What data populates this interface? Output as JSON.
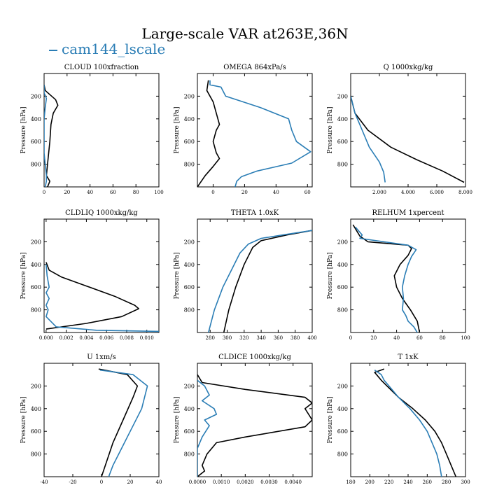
{
  "title": "Large-scale VAR at263E,36N",
  "legend": {
    "label": "cam144_lscale",
    "color": "#2a7db5"
  },
  "colors": {
    "control": "#000000",
    "case": "#2a7db5"
  },
  "chart_data": [
    {
      "type": "line",
      "title": "CLOUD  100xfraction",
      "ylabel": "Pressure [hPa]",
      "xlim": [
        0,
        100
      ],
      "ylim": [
        1000,
        0
      ],
      "xticks": [
        "0",
        "20",
        "40",
        "60",
        "80",
        "100"
      ],
      "yticks": [
        200,
        400,
        600,
        800
      ],
      "series": [
        {
          "values": [
            [
              0,
              100
            ],
            [
              1,
              150
            ],
            [
              10,
              230
            ],
            [
              12,
              280
            ],
            [
              8,
              350
            ],
            [
              6,
              450
            ],
            [
              5,
              600
            ],
            [
              3,
              800
            ],
            [
              2,
              900
            ],
            [
              5,
              950
            ],
            [
              3,
              1000
            ]
          ]
        },
        {
          "values": [
            [
              0,
              100
            ],
            [
              0,
              170
            ],
            [
              2,
              220
            ],
            [
              1,
              300
            ],
            [
              0,
              400
            ],
            [
              0,
              700
            ],
            [
              1,
              800
            ],
            [
              2,
              900
            ],
            [
              2,
              950
            ],
            [
              1,
              1000
            ]
          ]
        }
      ]
    },
    {
      "type": "line",
      "title": "OMEGA  864xPa/s",
      "ylabel": "Pressure [hPa]",
      "xlim": [
        -10,
        63
      ],
      "ylim": [
        1000,
        0
      ],
      "xticks": [
        "0",
        "20",
        "40",
        "60"
      ],
      "yticks": [
        200,
        400,
        600,
        800
      ],
      "series": [
        {
          "values": [
            [
              -3,
              60
            ],
            [
              -4,
              150
            ],
            [
              0,
              250
            ],
            [
              2,
              350
            ],
            [
              4,
              450
            ],
            [
              2,
              500
            ],
            [
              0,
              600
            ],
            [
              2,
              700
            ],
            [
              4,
              750
            ],
            [
              0,
              820
            ],
            [
              -5,
              900
            ],
            [
              -10,
              1000
            ]
          ]
        },
        {
          "values": [
            [
              -2,
              60
            ],
            [
              -2,
              100
            ],
            [
              5,
              120
            ],
            [
              8,
              200
            ],
            [
              30,
              300
            ],
            [
              48,
              400
            ],
            [
              50,
              500
            ],
            [
              53,
              600
            ],
            [
              62,
              690
            ],
            [
              50,
              790
            ],
            [
              28,
              860
            ],
            [
              18,
              910
            ],
            [
              15,
              950
            ],
            [
              14,
              1000
            ]
          ]
        }
      ]
    },
    {
      "type": "line",
      "title": "Q  1000xkg/kg",
      "ylabel": "Pressure [hPa]",
      "xlim": [
        0,
        8000
      ],
      "ylim": [
        1000,
        0
      ],
      "xticks": [
        "2.000",
        "4.000",
        "6.000",
        "8.000"
      ],
      "xtick_values": [
        2000,
        4000,
        6000,
        8000
      ],
      "yticks": [
        200,
        400,
        600,
        800
      ],
      "series": [
        {
          "values": [
            [
              0,
              200
            ],
            [
              300,
              350
            ],
            [
              1200,
              500
            ],
            [
              2800,
              650
            ],
            [
              4600,
              760
            ],
            [
              6400,
              860
            ],
            [
              7900,
              960
            ]
          ]
        },
        {
          "values": [
            [
              0,
              200
            ],
            [
              300,
              350
            ],
            [
              800,
              500
            ],
            [
              1300,
              650
            ],
            [
              2000,
              780
            ],
            [
              2300,
              870
            ],
            [
              2400,
              960
            ]
          ]
        }
      ]
    },
    {
      "type": "line",
      "title": "CLDLIQ  1000xkg/kg",
      "ylabel": "Pressure [hPa]",
      "xlim": [
        -0.0002,
        0.0112
      ],
      "ylim": [
        1000,
        0
      ],
      "xticks": [
        "0.000",
        "0.002",
        "0.004",
        "0.006",
        "0.008",
        "0.010"
      ],
      "xtick_values": [
        0,
        0.002,
        0.004,
        0.006,
        0.008,
        0.01
      ],
      "yticks": [
        200,
        400,
        600,
        800
      ],
      "series": [
        {
          "values": [
            [
              0,
              380
            ],
            [
              0.0003,
              450
            ],
            [
              0.0015,
              510
            ],
            [
              0.004,
              590
            ],
            [
              0.0068,
              680
            ],
            [
              0.0088,
              760
            ],
            [
              0.0092,
              790
            ],
            [
              0.0075,
              860
            ],
            [
              0.004,
              920
            ],
            [
              0,
              970
            ]
          ]
        },
        {
          "values": [
            [
              0,
              400
            ],
            [
              0.0001,
              500
            ],
            [
              0.0003,
              600
            ],
            [
              0,
              650
            ],
            [
              0.0003,
              700
            ],
            [
              0,
              760
            ],
            [
              0.0002,
              800
            ],
            [
              0,
              860
            ],
            [
              0.001,
              950
            ],
            [
              0.005,
              980
            ],
            [
              0.0112,
              990
            ]
          ]
        }
      ]
    },
    {
      "type": "line",
      "title": "THETA  1.0xK",
      "ylabel": "Pressure [hPa]",
      "xlim": [
        265,
        400
      ],
      "ylim": [
        1000,
        0
      ],
      "xticks": [
        "280",
        "300",
        "320",
        "340",
        "360",
        "380",
        "400"
      ],
      "xtick_values": [
        280,
        300,
        320,
        340,
        360,
        380,
        400
      ],
      "yticks": [
        200,
        400,
        600,
        800
      ],
      "series": [
        {
          "values": [
            [
              400,
              100
            ],
            [
              370,
              140
            ],
            [
              340,
              190
            ],
            [
              330,
              250
            ],
            [
              320,
              400
            ],
            [
              310,
              600
            ],
            [
              302,
              800
            ],
            [
              296,
              1000
            ]
          ]
        },
        {
          "values": [
            [
              400,
              100
            ],
            [
              365,
              140
            ],
            [
              340,
              170
            ],
            [
              325,
              220
            ],
            [
              315,
              300
            ],
            [
              305,
              450
            ],
            [
              295,
              600
            ],
            [
              285,
              800
            ],
            [
              278,
              1000
            ]
          ]
        }
      ]
    },
    {
      "type": "line",
      "title": "RELHUM  1xpercent",
      "ylabel": "Pressure [hPa]",
      "xlim": [
        0,
        100
      ],
      "ylim": [
        1000,
        0
      ],
      "xticks": [
        "0",
        "20",
        "40",
        "60",
        "80",
        "100"
      ],
      "yticks": [
        200,
        400,
        600,
        800
      ],
      "series": [
        {
          "values": [
            [
              2,
              50
            ],
            [
              8,
              150
            ],
            [
              15,
              200
            ],
            [
              50,
              230
            ],
            [
              53,
              260
            ],
            [
              50,
              320
            ],
            [
              43,
              400
            ],
            [
              38,
              500
            ],
            [
              40,
              600
            ],
            [
              45,
              700
            ],
            [
              52,
              800
            ],
            [
              58,
              900
            ],
            [
              60,
              1000
            ]
          ]
        },
        {
          "values": [
            [
              4,
              70
            ],
            [
              10,
              140
            ],
            [
              8,
              170
            ],
            [
              50,
              230
            ],
            [
              57,
              270
            ],
            [
              53,
              330
            ],
            [
              50,
              400
            ],
            [
              47,
              500
            ],
            [
              45,
              600
            ],
            [
              46,
              700
            ],
            [
              45,
              800
            ],
            [
              48,
              850
            ],
            [
              50,
              900
            ],
            [
              55,
              950
            ],
            [
              58,
              1000
            ]
          ]
        }
      ]
    },
    {
      "type": "line",
      "title": "U  1xm/s",
      "ylabel": "Pressure [hPa]",
      "xlim": [
        -40,
        40
      ],
      "ylim": [
        1000,
        0
      ],
      "xticks": [
        "-40",
        "-20",
        "0",
        "20",
        "40"
      ],
      "xtick_values": [
        -40,
        -20,
        0,
        20,
        40
      ],
      "yticks": [
        200,
        400,
        600,
        800
      ],
      "series": [
        {
          "values": [
            [
              -2,
              50
            ],
            [
              2,
              60
            ],
            [
              18,
              100
            ],
            [
              25,
              200
            ],
            [
              22,
              300
            ],
            [
              15,
              500
            ],
            [
              8,
              700
            ],
            [
              4,
              850
            ],
            [
              0,
              1000
            ]
          ]
        },
        {
          "values": [
            [
              -1,
              60
            ],
            [
              5,
              70
            ],
            [
              22,
              100
            ],
            [
              32,
              200
            ],
            [
              28,
              400
            ],
            [
              20,
              600
            ],
            [
              12,
              800
            ],
            [
              8,
              900
            ],
            [
              5,
              1000
            ]
          ]
        }
      ]
    },
    {
      "type": "line",
      "title": "CLDICE  1000xkg/kg",
      "ylabel": "Pressure [hPa]",
      "xlim": [
        0,
        0.0048
      ],
      "ylim": [
        1000,
        0
      ],
      "xticks": [
        "0.0000",
        "0.0010",
        "0.0020",
        "0.0030",
        "0.0040"
      ],
      "xtick_values": [
        0,
        0.001,
        0.002,
        0.003,
        0.004
      ],
      "yticks": [
        200,
        400,
        600,
        800
      ],
      "series": [
        {
          "values": [
            [
              0,
              100
            ],
            [
              0.0002,
              170
            ],
            [
              0.002,
              230
            ],
            [
              0.0045,
              300
            ],
            [
              0.0048,
              350
            ],
            [
              0.0045,
              400
            ],
            [
              0.0048,
              500
            ],
            [
              0.0045,
              560
            ],
            [
              0.002,
              650
            ],
            [
              0.0008,
              700
            ],
            [
              0.0004,
              800
            ],
            [
              0.0002,
              900
            ],
            [
              0.0003,
              950
            ],
            [
              0,
              1000
            ]
          ]
        },
        {
          "values": [
            [
              0,
              150
            ],
            [
              0.0003,
              200
            ],
            [
              0.0005,
              280
            ],
            [
              0.0002,
              330
            ],
            [
              0.0007,
              400
            ],
            [
              0.0008,
              450
            ],
            [
              0.0003,
              500
            ],
            [
              0.0005,
              550
            ],
            [
              0.0002,
              650
            ],
            [
              0,
              750
            ],
            [
              0,
              1000
            ]
          ]
        }
      ]
    },
    {
      "type": "line",
      "title": "T  1xK",
      "ylabel": "Pressure [hPa]",
      "xlim": [
        180,
        300
      ],
      "ylim": [
        1000,
        0
      ],
      "xticks": [
        "180",
        "200",
        "220",
        "240",
        "260",
        "280",
        "300"
      ],
      "xtick_values": [
        180,
        200,
        220,
        240,
        260,
        280,
        300
      ],
      "yticks": [
        200,
        400,
        600,
        800
      ],
      "series": [
        {
          "values": [
            [
              215,
              50
            ],
            [
              205,
              80
            ],
            [
              208,
              110
            ],
            [
              212,
              150
            ],
            [
              218,
              200
            ],
            [
              230,
              300
            ],
            [
              245,
              400
            ],
            [
              258,
              500
            ],
            [
              268,
              600
            ],
            [
              275,
              700
            ],
            [
              280,
              800
            ],
            [
              285,
              900
            ],
            [
              290,
              1000
            ]
          ]
        },
        {
          "values": [
            [
              205,
              60
            ],
            [
              212,
              100
            ],
            [
              215,
              150
            ],
            [
              220,
              200
            ],
            [
              230,
              300
            ],
            [
              242,
              400
            ],
            [
              252,
              500
            ],
            [
              260,
              600
            ],
            [
              265,
              700
            ],
            [
              270,
              800
            ],
            [
              273,
              900
            ],
            [
              275,
              1000
            ]
          ]
        }
      ]
    }
  ]
}
